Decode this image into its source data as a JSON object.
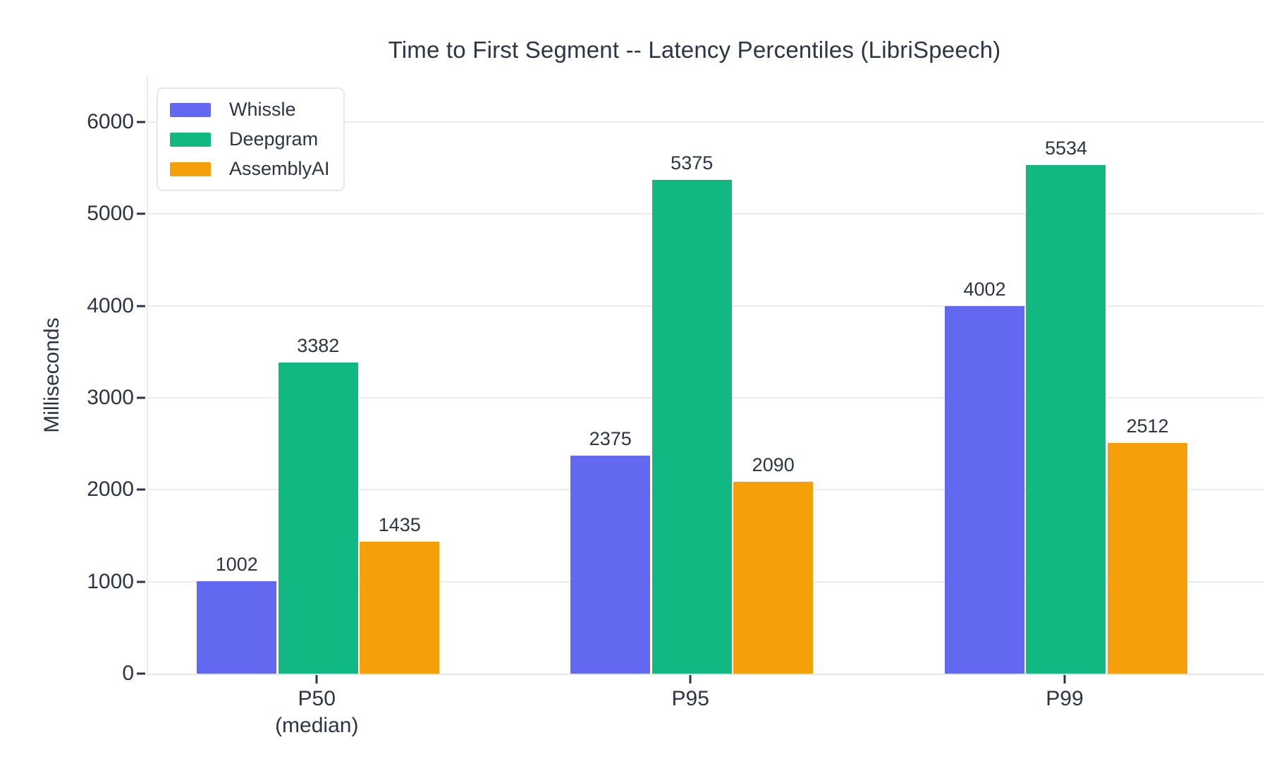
{
  "chart_data": {
    "type": "bar",
    "title": "Time to First Segment -- Latency Percentiles (LibriSpeech)",
    "ylabel": "Milliseconds",
    "xlabel": "",
    "categories": [
      [
        "P50",
        "(median)"
      ],
      [
        "P95"
      ],
      [
        "P99"
      ]
    ],
    "series": [
      {
        "name": "Whissle",
        "color": "#6269f0",
        "values": [
          1002,
          2375,
          4002
        ]
      },
      {
        "name": "Deepgram",
        "color": "#11b881",
        "values": [
          3382,
          5375,
          5534
        ]
      },
      {
        "name": "AssemblyAI",
        "color": "#f5a00a",
        "values": [
          1435,
          2090,
          2512
        ]
      }
    ],
    "value_labels": [
      [
        "1002",
        "2375",
        "4002"
      ],
      [
        "3382",
        "5375",
        "5534"
      ],
      [
        "1435",
        "2090",
        "2512"
      ]
    ],
    "yticks": [
      "0",
      "1000",
      "2000",
      "3000",
      "4000",
      "5000",
      "6000"
    ],
    "ylim": [
      0,
      6500
    ],
    "grid": true,
    "legend_position": "top-left"
  }
}
